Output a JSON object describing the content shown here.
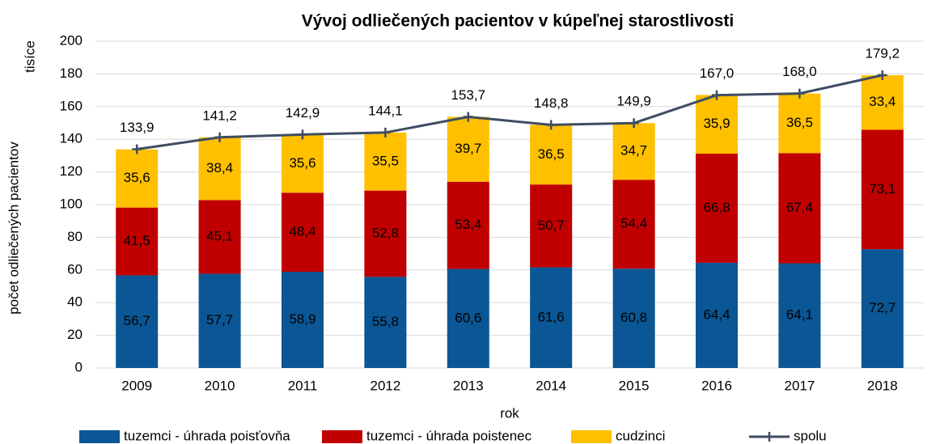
{
  "chart_data": {
    "type": "bar",
    "stacked": true,
    "title": "Vývoj odliečených pacientov v kúpeľnej starostlivosti",
    "y_unit": "tisíce",
    "ylabel": "počet odliečených pacientov",
    "xlabel": "rok",
    "categories": [
      "2009",
      "2010",
      "2011",
      "2012",
      "2013",
      "2014",
      "2015",
      "2016",
      "2017",
      "2018"
    ],
    "ylim": [
      0,
      200
    ],
    "yticks": [
      0,
      20,
      40,
      60,
      80,
      100,
      120,
      140,
      160,
      180,
      200
    ],
    "grid": true,
    "series": [
      {
        "name": "tuzemci - úhrada poisťovňa",
        "color": "#0b5694",
        "type": "bar",
        "values": [
          56.7,
          57.7,
          58.9,
          55.8,
          60.6,
          61.6,
          60.8,
          64.4,
          64.1,
          72.7
        ],
        "value_labels": [
          "56,7",
          "57,7",
          "58,9",
          "55,8",
          "60,6",
          "61,6",
          "60,8",
          "64,4",
          "64,1",
          "72,7"
        ]
      },
      {
        "name": "tuzemci - úhrada poistenec",
        "color": "#c00000",
        "type": "bar",
        "values": [
          41.5,
          45.1,
          48.4,
          52.8,
          53.4,
          50.7,
          54.4,
          66.8,
          67.4,
          73.1
        ],
        "value_labels": [
          "41,5",
          "45,1",
          "48,4",
          "52,8",
          "53,4",
          "50,7",
          "54,4",
          "66,8",
          "67,4",
          "73,1"
        ]
      },
      {
        "name": "cudzinci",
        "color": "#ffc000",
        "type": "bar",
        "values": [
          35.6,
          38.4,
          35.6,
          35.5,
          39.7,
          36.5,
          34.7,
          35.9,
          36.5,
          33.4
        ],
        "value_labels": [
          "35,6",
          "38,4",
          "35,6",
          "35,5",
          "39,7",
          "36,5",
          "34,7",
          "35,9",
          "36,5",
          "33,4"
        ]
      },
      {
        "name": "spolu",
        "color": "#3f4d63",
        "type": "line",
        "values": [
          133.9,
          141.2,
          142.9,
          144.1,
          153.7,
          148.8,
          149.9,
          167.0,
          168.0,
          179.2
        ],
        "value_labels": [
          "133,9",
          "141,2",
          "142,9",
          "144,1",
          "153,7",
          "148,8",
          "149,9",
          "167,0",
          "168,0",
          "179,2"
        ]
      }
    ]
  }
}
